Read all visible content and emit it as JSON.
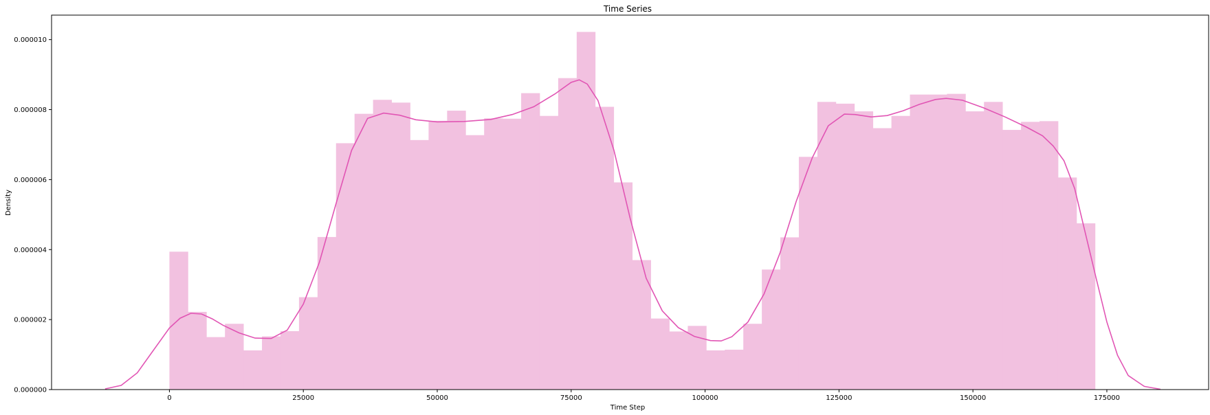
{
  "chart_data": {
    "type": "histogram",
    "title": "Time Series",
    "xlabel": "Time Step",
    "ylabel": "Density",
    "xlim": [
      -22000,
      194000
    ],
    "ylim": [
      0,
      1.07e-05
    ],
    "x_ticks": [
      0,
      25000,
      50000,
      75000,
      100000,
      125000,
      150000,
      175000
    ],
    "x_tick_labels": [
      "0",
      "25000",
      "50000",
      "75000",
      "100000",
      "125000",
      "150000",
      "175000"
    ],
    "y_ticks": [
      0,
      2e-06,
      4e-06,
      6e-06,
      8e-06,
      1e-05
    ],
    "y_tick_labels": [
      "0.000000",
      "0.000002",
      "0.000004",
      "0.000006",
      "0.000008",
      "0.000010"
    ],
    "colors": {
      "bars": "#f2c1e0",
      "kde": "#e155b4"
    },
    "bins": {
      "start": 0,
      "width": 3456,
      "values": [
        3.94e-06,
        2.22e-06,
        1.5e-06,
        1.88e-06,
        1.12e-06,
        1.52e-06,
        1.67e-06,
        2.64e-06,
        4.36e-06,
        7.04e-06,
        7.88e-06,
        8.28e-06,
        8.2e-06,
        7.13e-06,
        7.68e-06,
        7.97e-06,
        7.27e-06,
        7.75e-06,
        7.74e-06,
        8.47e-06,
        7.82e-06,
        8.9e-06,
        1.022e-05,
        8.08e-06,
        5.92e-06,
        3.7e-06,
        2.03e-06,
        1.66e-06,
        1.82e-06,
        1.12e-06,
        1.14e-06,
        1.88e-06,
        3.43e-06,
        4.35e-06,
        6.65e-06,
        8.22e-06,
        8.17e-06,
        7.95e-06,
        7.47e-06,
        7.82e-06,
        8.43e-06,
        8.43e-06,
        8.45e-06,
        7.95e-06,
        8.22e-06,
        7.42e-06,
        7.65e-06,
        7.67e-06,
        6.06e-06,
        4.75e-06
      ]
    },
    "kde": {
      "x": [
        -12000,
        -9000,
        -6000,
        -3000,
        0,
        2000,
        4000,
        6000,
        8000,
        10000,
        13000,
        16000,
        19000,
        22000,
        25000,
        28000,
        31000,
        34000,
        37000,
        40000,
        43000,
        46000,
        50000,
        55000,
        60000,
        64000,
        68000,
        72000,
        75000,
        76500,
        78000,
        80000,
        83000,
        86000,
        89000,
        92000,
        95000,
        98000,
        101000,
        103000,
        105000,
        108000,
        111000,
        114000,
        117000,
        120000,
        123000,
        126000,
        128000,
        131000,
        134000,
        137000,
        140000,
        143000,
        145000,
        148000,
        152000,
        156000,
        160000,
        163000,
        165000,
        167000,
        169000,
        171000,
        173000,
        175000,
        177000,
        179000,
        182000,
        185000
      ],
      "y": [
        2e-08,
        1.2e-07,
        4.8e-07,
        1.12e-06,
        1.76e-06,
        2.04e-06,
        2.18e-06,
        2.16e-06,
        2.02e-06,
        1.84e-06,
        1.62e-06,
        1.47e-06,
        1.46e-06,
        1.7e-06,
        2.44e-06,
        3.64e-06,
        5.26e-06,
        6.83e-06,
        7.75e-06,
        7.9e-06,
        7.84e-06,
        7.71e-06,
        7.65e-06,
        7.66e-06,
        7.72e-06,
        7.86e-06,
        8.08e-06,
        8.45e-06,
        8.78e-06,
        8.85e-06,
        8.73e-06,
        8.26e-06,
        6.83e-06,
        4.9e-06,
        3.18e-06,
        2.25e-06,
        1.77e-06,
        1.52e-06,
        1.4e-06,
        1.39e-06,
        1.51e-06,
        1.93e-06,
        2.73e-06,
        3.91e-06,
        5.37e-06,
        6.62e-06,
        7.54e-06,
        7.87e-06,
        7.86e-06,
        7.79e-06,
        7.83e-06,
        7.97e-06,
        8.15e-06,
        8.29e-06,
        8.32e-06,
        8.27e-06,
        8.05e-06,
        7.79e-06,
        7.5e-06,
        7.25e-06,
        6.96e-06,
        6.54e-06,
        5.74e-06,
        4.46e-06,
        3.18e-06,
        1.93e-06,
        9.8e-07,
        4e-07,
        9e-08,
        1e-08
      ]
    }
  }
}
